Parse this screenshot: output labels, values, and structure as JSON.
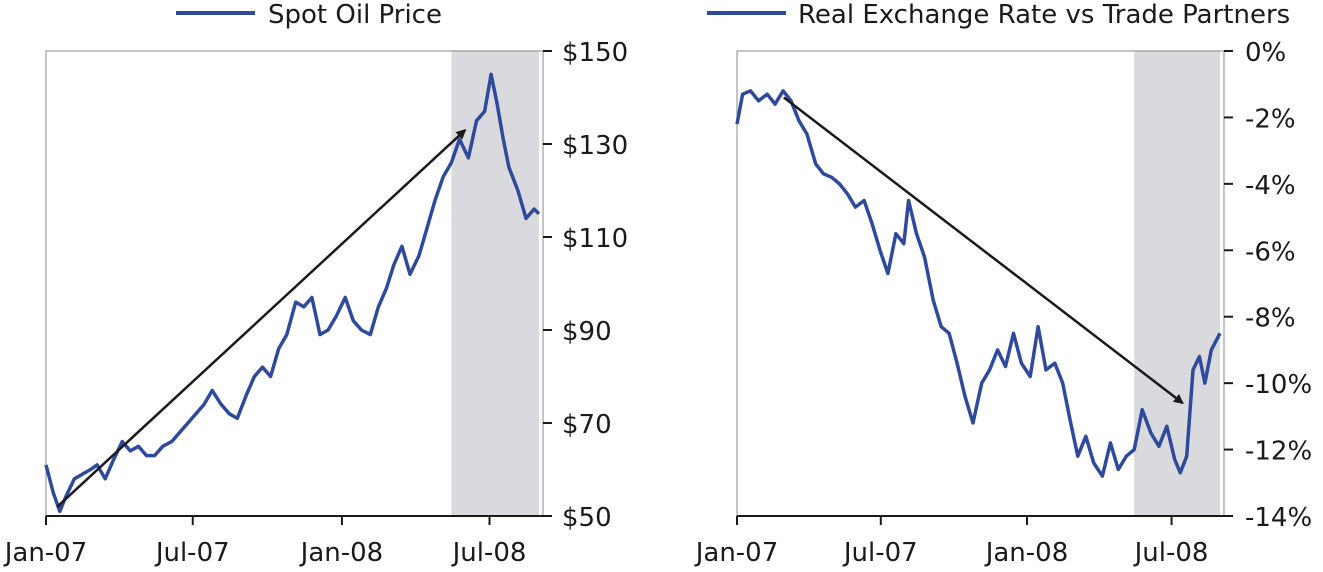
{
  "chart_data": [
    {
      "type": "line",
      "legend_placement": "top",
      "x_tick_labels": [
        "Jan-07",
        "Jul-07",
        "Jan-08",
        "Jul-08"
      ],
      "y_tick_labels": [
        "$150",
        "$130",
        "$110",
        "$90",
        "$70",
        "$50"
      ],
      "y_ticks": [
        150,
        130,
        110,
        90,
        70,
        50
      ],
      "ylim": [
        50,
        150
      ],
      "y_axis_side": "right",
      "grid": false,
      "shaded_region_label": "",
      "shaded_region": [
        "2008-05-15",
        "2008-08-31"
      ],
      "trend_arrow": {
        "from": [
          "2007-01-15",
          52
        ],
        "to": [
          "2008-06-01",
          133
        ]
      },
      "series": [
        {
          "name": "Spot Oil Price",
          "color": "#2f4a9c",
          "points": [
            [
              "2007-01-01",
              61
            ],
            [
              "2007-01-10",
              55
            ],
            [
              "2007-01-18",
              51
            ],
            [
              "2007-01-25",
              54
            ],
            [
              "2007-02-05",
              58
            ],
            [
              "2007-02-15",
              59
            ],
            [
              "2007-02-25",
              60
            ],
            [
              "2007-03-05",
              61
            ],
            [
              "2007-03-15",
              58
            ],
            [
              "2007-03-25",
              62
            ],
            [
              "2007-04-05",
              66
            ],
            [
              "2007-04-15",
              64
            ],
            [
              "2007-04-25",
              65
            ],
            [
              "2007-05-05",
              63
            ],
            [
              "2007-05-15",
              63
            ],
            [
              "2007-05-25",
              65
            ],
            [
              "2007-06-05",
              66
            ],
            [
              "2007-06-15",
              68
            ],
            [
              "2007-06-25",
              70
            ],
            [
              "2007-07-05",
              72
            ],
            [
              "2007-07-15",
              74
            ],
            [
              "2007-07-25",
              77
            ],
            [
              "2007-08-05",
              74
            ],
            [
              "2007-08-15",
              72
            ],
            [
              "2007-08-25",
              71
            ],
            [
              "2007-09-05",
              76
            ],
            [
              "2007-09-15",
              80
            ],
            [
              "2007-09-25",
              82
            ],
            [
              "2007-10-05",
              80
            ],
            [
              "2007-10-15",
              86
            ],
            [
              "2007-10-25",
              89
            ],
            [
              "2007-11-05",
              96
            ],
            [
              "2007-11-15",
              95
            ],
            [
              "2007-11-25",
              97
            ],
            [
              "2007-12-05",
              89
            ],
            [
              "2007-12-15",
              90
            ],
            [
              "2007-12-25",
              93
            ],
            [
              "2008-01-05",
              97
            ],
            [
              "2008-01-15",
              92
            ],
            [
              "2008-01-25",
              90
            ],
            [
              "2008-02-05",
              89
            ],
            [
              "2008-02-15",
              95
            ],
            [
              "2008-02-25",
              99
            ],
            [
              "2008-03-05",
              104
            ],
            [
              "2008-03-15",
              108
            ],
            [
              "2008-03-25",
              102
            ],
            [
              "2008-04-05",
              106
            ],
            [
              "2008-04-15",
              112
            ],
            [
              "2008-04-25",
              118
            ],
            [
              "2008-05-05",
              123
            ],
            [
              "2008-05-15",
              126
            ],
            [
              "2008-05-25",
              131
            ],
            [
              "2008-06-05",
              127
            ],
            [
              "2008-06-15",
              135
            ],
            [
              "2008-06-25",
              137
            ],
            [
              "2008-07-03",
              145
            ],
            [
              "2008-07-10",
              139
            ],
            [
              "2008-07-18",
              131
            ],
            [
              "2008-07-25",
              125
            ],
            [
              "2008-08-05",
              120
            ],
            [
              "2008-08-15",
              114
            ],
            [
              "2008-08-25",
              116
            ],
            [
              "2008-08-31",
              115
            ]
          ]
        }
      ]
    },
    {
      "type": "line",
      "legend_placement": "top",
      "x_tick_labels": [
        "Jan-07",
        "Jul-07",
        "Jan-08",
        "Jul-08"
      ],
      "y_tick_labels": [
        "0%",
        "-2%",
        "-4%",
        "-6%",
        "-8%",
        "-10%",
        "-12%",
        "-14%"
      ],
      "y_ticks": [
        0,
        -2,
        -4,
        -6,
        -8,
        -10,
        -12,
        -14
      ],
      "ylim": [
        -14,
        0
      ],
      "y_axis_side": "right",
      "grid": false,
      "shaded_region_label": "",
      "shaded_region": [
        "2008-05-15",
        "2008-08-31"
      ],
      "trend_arrow": {
        "from": [
          "2007-03-01",
          -1.4
        ],
        "to": [
          "2008-07-15",
          -10.6
        ]
      },
      "series": [
        {
          "name": "Real Exchange Rate vs Trade Partners",
          "color": "#2f4a9c",
          "points": [
            [
              "2007-01-01",
              -2.2
            ],
            [
              "2007-01-08",
              -1.3
            ],
            [
              "2007-01-18",
              -1.2
            ],
            [
              "2007-01-28",
              -1.5
            ],
            [
              "2007-02-08",
              -1.3
            ],
            [
              "2007-02-18",
              -1.6
            ],
            [
              "2007-02-28",
              -1.2
            ],
            [
              "2007-03-10",
              -1.5
            ],
            [
              "2007-03-20",
              -2.1
            ],
            [
              "2007-03-30",
              -2.5
            ],
            [
              "2007-04-10",
              -3.4
            ],
            [
              "2007-04-20",
              -3.7
            ],
            [
              "2007-04-30",
              -3.8
            ],
            [
              "2007-05-10",
              -4.0
            ],
            [
              "2007-05-20",
              -4.3
            ],
            [
              "2007-05-30",
              -4.7
            ],
            [
              "2007-06-10",
              -4.5
            ],
            [
              "2007-06-20",
              -5.2
            ],
            [
              "2007-06-30",
              -6.0
            ],
            [
              "2007-07-10",
              -6.7
            ],
            [
              "2007-07-20",
              -5.5
            ],
            [
              "2007-07-30",
              -5.8
            ],
            [
              "2007-08-05",
              -4.5
            ],
            [
              "2007-08-15",
              -5.5
            ],
            [
              "2007-08-25",
              -6.2
            ],
            [
              "2007-09-05",
              -7.5
            ],
            [
              "2007-09-15",
              -8.3
            ],
            [
              "2007-09-25",
              -8.5
            ],
            [
              "2007-10-05",
              -9.4
            ],
            [
              "2007-10-15",
              -10.4
            ],
            [
              "2007-10-25",
              -11.2
            ],
            [
              "2007-11-05",
              -10.0
            ],
            [
              "2007-11-15",
              -9.6
            ],
            [
              "2007-11-25",
              -9.0
            ],
            [
              "2007-12-05",
              -9.5
            ],
            [
              "2007-12-15",
              -8.5
            ],
            [
              "2007-12-25",
              -9.4
            ],
            [
              "2008-01-05",
              -9.8
            ],
            [
              "2008-01-15",
              -8.3
            ],
            [
              "2008-01-25",
              -9.6
            ],
            [
              "2008-02-05",
              -9.4
            ],
            [
              "2008-02-15",
              -10.0
            ],
            [
              "2008-02-25",
              -11.2
            ],
            [
              "2008-03-05",
              -12.2
            ],
            [
              "2008-03-15",
              -11.6
            ],
            [
              "2008-03-25",
              -12.4
            ],
            [
              "2008-04-05",
              -12.8
            ],
            [
              "2008-04-15",
              -11.8
            ],
            [
              "2008-04-25",
              -12.6
            ],
            [
              "2008-05-05",
              -12.2
            ],
            [
              "2008-05-15",
              -12.0
            ],
            [
              "2008-05-25",
              -10.8
            ],
            [
              "2008-06-05",
              -11.5
            ],
            [
              "2008-06-15",
              -11.9
            ],
            [
              "2008-06-25",
              -11.3
            ],
            [
              "2008-07-05",
              -12.3
            ],
            [
              "2008-07-12",
              -12.7
            ],
            [
              "2008-07-20",
              -12.2
            ],
            [
              "2008-07-28",
              -9.6
            ],
            [
              "2008-08-05",
              -9.2
            ],
            [
              "2008-08-12",
              -10.0
            ],
            [
              "2008-08-20",
              -9.0
            ],
            [
              "2008-08-31",
              -8.5
            ]
          ]
        }
      ]
    }
  ]
}
